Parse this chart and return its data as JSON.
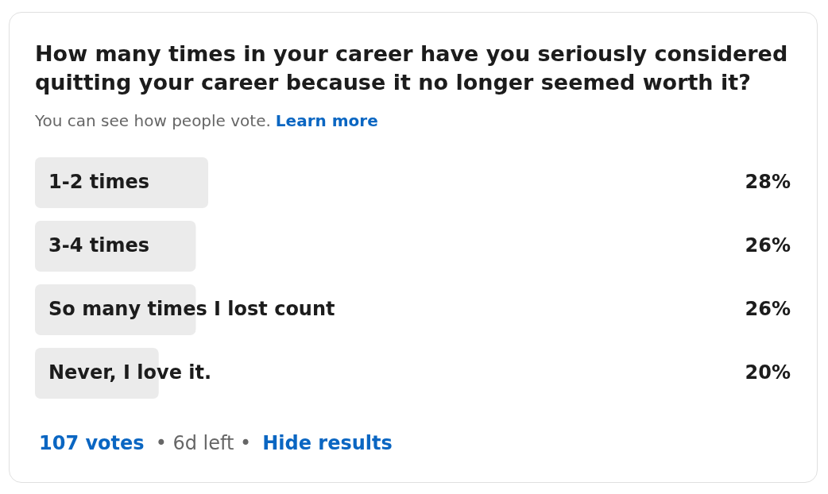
{
  "chart_data": {
    "type": "bar",
    "orientation": "horizontal",
    "title": "How many times in your career have you seriously considered quitting your career because it no longer seemed worth it?",
    "subtitle": "You can see how people vote.",
    "categories": [
      "1-2 times",
      "3-4 times",
      "So many times I lost count",
      "Never, I love it."
    ],
    "values": [
      28,
      26,
      26,
      20
    ],
    "value_labels": [
      "28%",
      "26%",
      "26%",
      "20%"
    ],
    "color": "#ebebeb",
    "tick_labels": "y",
    "annotations": [
      "Learn more",
      "107 votes",
      "• 6d left •",
      "Hide results"
    ]
  }
}
